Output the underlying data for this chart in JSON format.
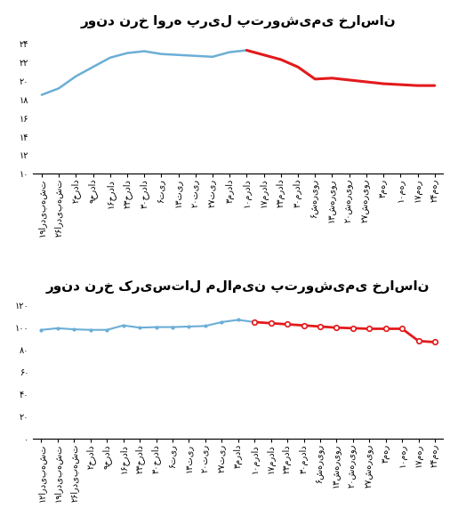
{
  "title1": "روند نرخ اوره پریل پتروشیمی خراسان",
  "title2": "روند نرخ کریستال ملامین پتروشیمی خراسان",
  "chart1": {
    "x_labels": [
      "۱۹اردیبهشت",
      "۲۶اردیبهشت",
      "۲خرداد",
      "۹خرداد",
      "۱۶خرداد",
      "۲۳خرداد",
      "۳۰خرداد",
      "۶تیر",
      "۱۳تیر",
      "۲۰تیر",
      "۲۷تیر",
      "۳مرداد",
      "۱۰مرداد",
      "۱۷مرداد",
      "۲۳مرداد",
      "۳۰مرداد",
      "۶شهریور",
      "۱۳شهریور",
      "۲۰شهریور",
      "۲۷شهریور",
      "۳مهر",
      "۱۰مهر",
      "۱۷مهر",
      "۲۴مهر"
    ],
    "blue_values": [
      18.5,
      19.2,
      20.5,
      21.5,
      22.5,
      23.0,
      23.2,
      22.9,
      22.8,
      22.7,
      22.6,
      23.1,
      23.3,
      null,
      null,
      null,
      null,
      null,
      null,
      null,
      null,
      null,
      null,
      null
    ],
    "red_values": [
      null,
      null,
      null,
      null,
      null,
      null,
      null,
      null,
      null,
      null,
      null,
      null,
      23.3,
      22.8,
      22.3,
      21.5,
      20.2,
      20.3,
      20.1,
      19.9,
      19.7,
      19.6,
      19.5,
      19.5
    ],
    "ylim": [
      10,
      25
    ],
    "yticks": [
      10,
      12,
      14,
      16,
      18,
      20,
      22,
      24
    ],
    "blue_color": "#6baed6",
    "red_color": "#e31a1c"
  },
  "chart2": {
    "x_labels": [
      "۱۲اردیبهشت",
      "۱۹اردیبهشت",
      "۲۶اردیبهشت",
      "۲خرداد",
      "۹خرداد",
      "۱۶خرداد",
      "۲۳خرداد",
      "۳۰خرداد",
      "۶تیر",
      "۱۳تیر",
      "۲۰تیر",
      "۲۷تیر",
      "۳مرداد",
      "۱۰مرداد",
      "۱۷مرداد",
      "۲۳مرداد",
      "۳۰مرداد",
      "۶شهریور",
      "۱۳شهریور",
      "۲۰شهریور",
      "۲۷شهریور",
      "۳مهر",
      "۱۰مهر",
      "۱۷مهر",
      "۲۴مهر"
    ],
    "blue_values": [
      98,
      99.5,
      98.5,
      98,
      98,
      102,
      100,
      100.5,
      100.5,
      101,
      101.5,
      105,
      107,
      105,
      null,
      null,
      null,
      null,
      null,
      null,
      null,
      null,
      null,
      null,
      null
    ],
    "red_values": [
      null,
      null,
      null,
      null,
      null,
      null,
      null,
      null,
      null,
      null,
      null,
      null,
      null,
      105,
      104,
      103,
      102,
      101,
      100,
      99.5,
      99,
      99,
      99,
      88,
      87
    ],
    "ylim": [
      0,
      125
    ],
    "yticks": [
      0,
      20,
      40,
      60,
      80,
      100,
      120
    ],
    "blue_color": "#6baed6",
    "red_color": "#e31a1c"
  },
  "bg_color": "#ffffff",
  "font_size_title": 11,
  "font_size_tick": 7,
  "label_rotation": 90
}
